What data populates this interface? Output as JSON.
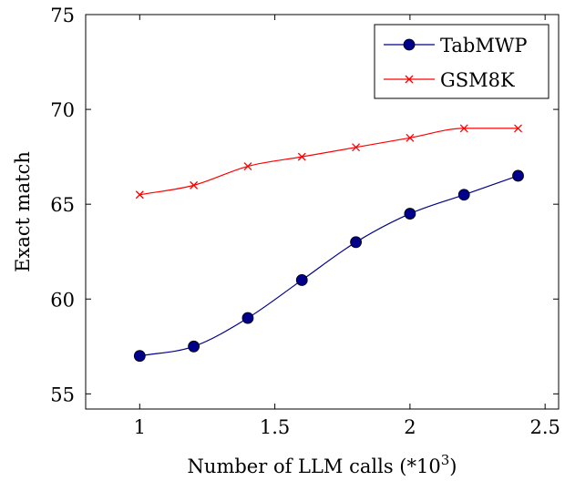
{
  "chart_data": {
    "type": "line",
    "title": "",
    "xlabel": "Number of LLM calls (*10",
    "xlabel_superscript": "3",
    "xlabel_suffix": ")",
    "ylabel": "Exact match",
    "xlim": [
      0.8,
      2.55
    ],
    "ylim": [
      54.2,
      75
    ],
    "xticks": [
      1,
      1.5,
      2,
      2.5
    ],
    "xtick_labels": [
      "1",
      "1.5",
      "2",
      "2.5"
    ],
    "yticks": [
      55,
      60,
      65,
      70,
      75
    ],
    "ytick_labels": [
      "55",
      "60",
      "65",
      "70",
      "75"
    ],
    "grid": false,
    "legend_position": "top-right",
    "x": [
      1.0,
      1.2,
      1.4,
      1.6,
      1.8,
      2.0,
      2.2,
      2.4
    ],
    "series": [
      {
        "name": "TabMWP",
        "color": "#00008b",
        "marker": "circle",
        "values": [
          57.0,
          57.5,
          59.0,
          61.0,
          63.0,
          64.5,
          65.5,
          66.5
        ]
      },
      {
        "name": "GSM8K",
        "color": "#ff0000",
        "marker": "x",
        "values": [
          65.5,
          66.0,
          67.0,
          67.5,
          68.0,
          68.5,
          69.0,
          69.0
        ]
      }
    ]
  }
}
